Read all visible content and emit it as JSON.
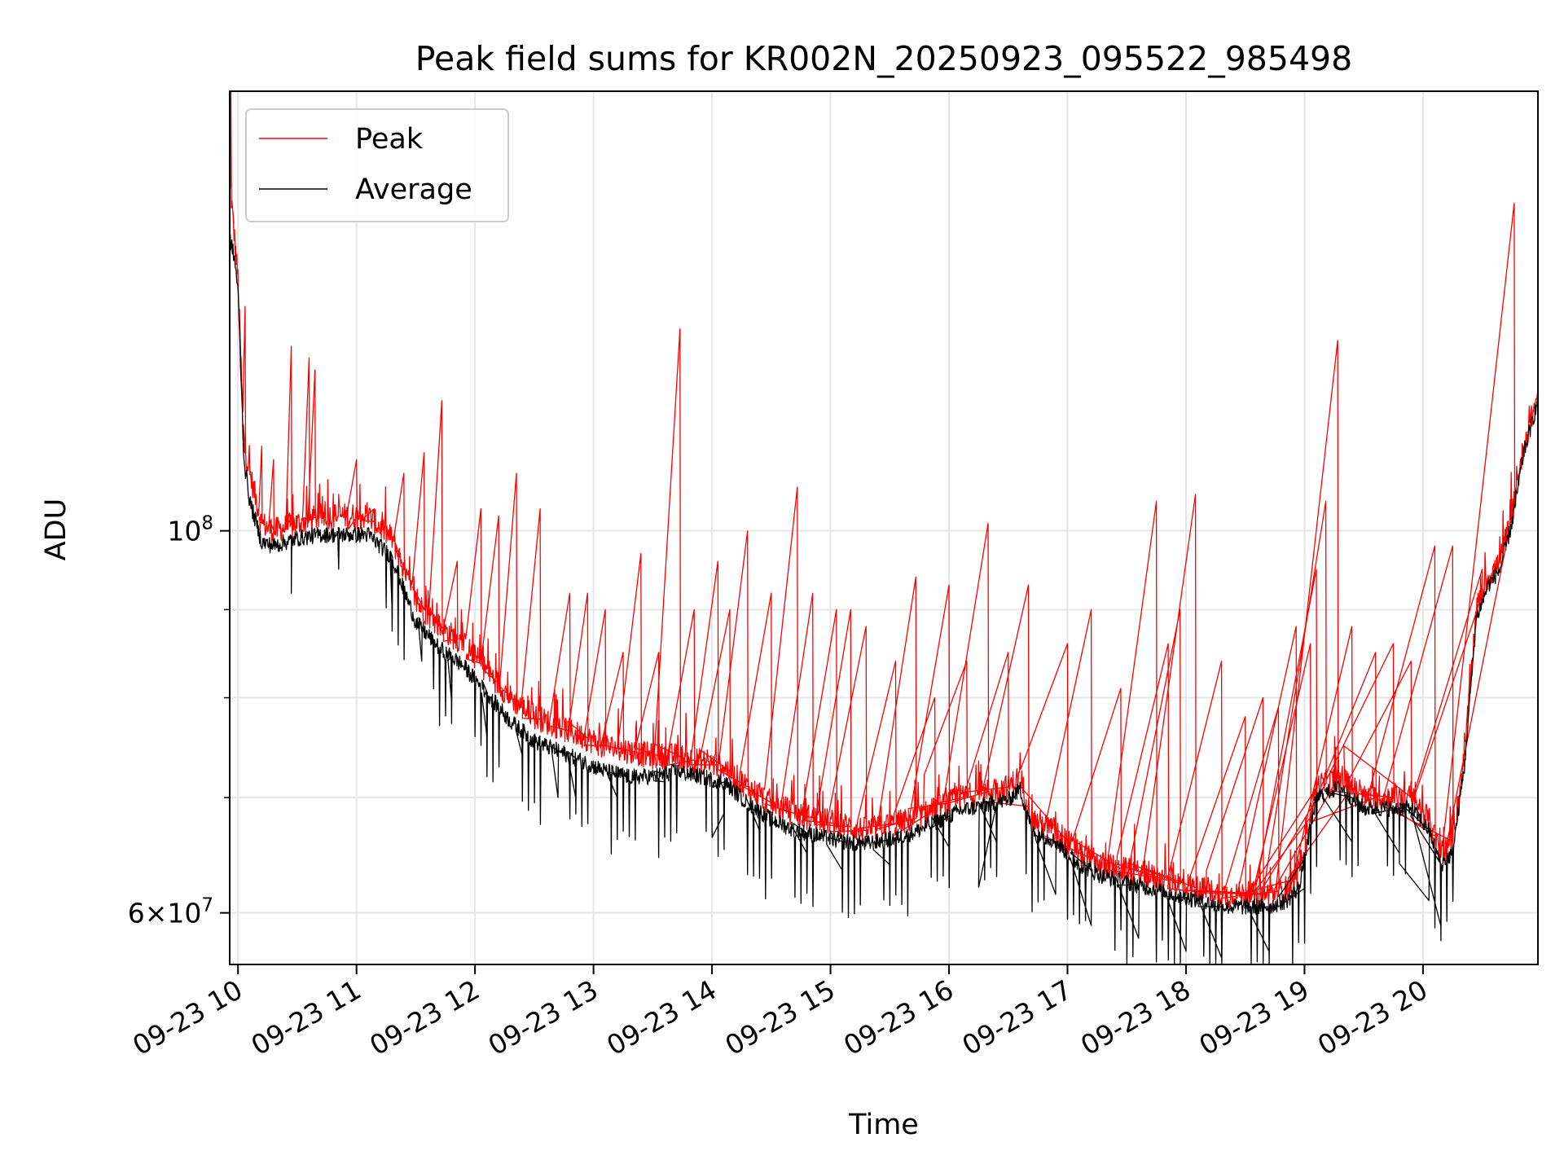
{
  "chart_data": {
    "type": "line",
    "title": "Peak field sums for KR002N_20250923_095522_985498",
    "xlabel": "Time",
    "ylabel": "ADU",
    "yscale": "log",
    "ylim": [
      56000000,
      180000000
    ],
    "xlim_hours": [
      9.93,
      20.97
    ],
    "x_ticks": [
      {
        "hour": 10,
        "label": "09-23 10"
      },
      {
        "hour": 11,
        "label": "09-23 11"
      },
      {
        "hour": 12,
        "label": "09-23 12"
      },
      {
        "hour": 13,
        "label": "09-23 13"
      },
      {
        "hour": 14,
        "label": "09-23 14"
      },
      {
        "hour": 15,
        "label": "09-23 15"
      },
      {
        "hour": 16,
        "label": "09-23 16"
      },
      {
        "hour": 17,
        "label": "09-23 17"
      },
      {
        "hour": 18,
        "label": "09-23 18"
      },
      {
        "hour": 19,
        "label": "09-23 19"
      },
      {
        "hour": 20,
        "label": "09-23 20"
      }
    ],
    "y_major_ticks": [
      {
        "value": 100000000,
        "label": "10^8"
      },
      {
        "value": 60000000,
        "label": "6×10^7"
      }
    ],
    "y_minor_gridlines": [
      70000000,
      80000000,
      90000000
    ],
    "grid": true,
    "legend_position": "upper-left",
    "series": [
      {
        "name": "Peak",
        "color": "#ff0000",
        "x_hours": [
          9.93,
          9.97,
          10.0,
          10.05,
          10.1,
          10.2,
          10.3,
          10.5,
          10.7,
          10.9,
          11.1,
          11.3,
          11.5,
          11.7,
          11.9,
          12.1,
          12.3,
          12.5,
          12.7,
          12.9,
          13.1,
          13.3,
          13.5,
          13.7,
          13.9,
          14.1,
          14.3,
          14.5,
          14.7,
          14.9,
          15.1,
          15.3,
          15.5,
          15.7,
          15.9,
          16.1,
          16.3,
          16.5,
          16.6,
          16.7,
          16.9,
          17.1,
          17.3,
          17.5,
          17.7,
          17.9,
          18.1,
          18.3,
          18.5,
          18.7,
          18.85,
          18.95,
          19.1,
          19.3,
          19.5,
          19.7,
          19.9,
          20.05,
          20.15,
          20.25,
          20.35,
          20.45,
          20.55,
          20.65,
          20.75,
          20.85,
          20.97
        ],
        "y": [
          160000000,
          148000000,
          140000000,
          112000000,
          108000000,
          101000000,
          100000000,
          101000000,
          102000000,
          102000000,
          102000000,
          99000000,
          91000000,
          88000000,
          86000000,
          83000000,
          80000000,
          78000000,
          77000000,
          76000000,
          75000000,
          74500000,
          74000000,
          74000000,
          73500000,
          73000000,
          71000000,
          69500000,
          68500000,
          68000000,
          67500000,
          67000000,
          67500000,
          68000000,
          69000000,
          70000000,
          70500000,
          71000000,
          72000000,
          68000000,
          67000000,
          65000000,
          64000000,
          63500000,
          63000000,
          62500000,
          62000000,
          61500000,
          61500000,
          61500000,
          62000000,
          63000000,
          71000000,
          72000000,
          70000000,
          70000000,
          70000000,
          68000000,
          65000000,
          66000000,
          74000000,
          90000000,
          94000000,
          96000000,
          102000000,
          112000000,
          120000000
        ],
        "spikes": [
          [
            9.94,
            185000000
          ],
          [
            9.96,
            152000000
          ],
          [
            10.06,
            135000000
          ],
          [
            10.2,
            112000000
          ],
          [
            10.3,
            110000000
          ],
          [
            10.45,
            128000000
          ],
          [
            10.6,
            126000000
          ],
          [
            10.65,
            124000000
          ],
          [
            11.0,
            110000000
          ],
          [
            11.15,
            103000000
          ],
          [
            11.4,
            108000000
          ],
          [
            11.57,
            111000000
          ],
          [
            11.72,
            119000000
          ],
          [
            11.85,
            96000000
          ],
          [
            12.05,
            103000000
          ],
          [
            12.2,
            102000000
          ],
          [
            12.35,
            108000000
          ],
          [
            12.55,
            103000000
          ],
          [
            12.8,
            92000000
          ],
          [
            12.95,
            92000000
          ],
          [
            13.1,
            90000000
          ],
          [
            13.25,
            85000000
          ],
          [
            13.4,
            97000000
          ],
          [
            13.55,
            85000000
          ],
          [
            13.73,
            131000000
          ],
          [
            13.85,
            90000000
          ],
          [
            14.05,
            96000000
          ],
          [
            14.15,
            90000000
          ],
          [
            14.3,
            100000000
          ],
          [
            14.5,
            92000000
          ],
          [
            14.72,
            106000000
          ],
          [
            14.85,
            92000000
          ],
          [
            15.05,
            90000000
          ],
          [
            15.17,
            90000000
          ],
          [
            15.3,
            88000000
          ],
          [
            15.55,
            84000000
          ],
          [
            15.72,
            94000000
          ],
          [
            15.88,
            80000000
          ],
          [
            16.0,
            93000000
          ],
          [
            16.15,
            84000000
          ],
          [
            16.33,
            101000000
          ],
          [
            16.5,
            85000000
          ],
          [
            16.67,
            93000000
          ],
          [
            17.0,
            86000000
          ],
          [
            17.2,
            90000000
          ],
          [
            17.45,
            81000000
          ],
          [
            17.75,
            104000000
          ],
          [
            17.85,
            86000000
          ],
          [
            17.95,
            90000000
          ],
          [
            18.08,
            105000000
          ],
          [
            18.3,
            84000000
          ],
          [
            18.5,
            78000000
          ],
          [
            18.65,
            80000000
          ],
          [
            18.78,
            79000000
          ],
          [
            18.93,
            88000000
          ],
          [
            19.05,
            86000000
          ],
          [
            19.1,
            95000000
          ],
          [
            19.18,
            104000000
          ],
          [
            19.28,
            129000000
          ],
          [
            19.4,
            88000000
          ],
          [
            19.6,
            85000000
          ],
          [
            19.75,
            86000000
          ],
          [
            19.9,
            84000000
          ],
          [
            20.1,
            98000000
          ],
          [
            20.25,
            98000000
          ],
          [
            20.5,
            95000000
          ],
          [
            20.77,
            155000000
          ]
        ]
      },
      {
        "name": "Average",
        "color": "#000000",
        "x_hours": [
          9.93,
          9.97,
          10.0,
          10.05,
          10.1,
          10.2,
          10.3,
          10.5,
          10.7,
          10.9,
          11.1,
          11.3,
          11.5,
          11.7,
          11.9,
          12.1,
          12.3,
          12.5,
          12.7,
          12.9,
          13.1,
          13.3,
          13.5,
          13.7,
          13.9,
          14.1,
          14.3,
          14.5,
          14.7,
          14.9,
          15.1,
          15.3,
          15.5,
          15.7,
          15.9,
          16.1,
          16.3,
          16.5,
          16.6,
          16.7,
          16.9,
          17.1,
          17.3,
          17.5,
          17.7,
          17.9,
          18.1,
          18.3,
          18.5,
          18.7,
          18.85,
          18.95,
          19.1,
          19.3,
          19.5,
          19.7,
          19.9,
          20.05,
          20.15,
          20.25,
          20.35,
          20.45,
          20.55,
          20.65,
          20.75,
          20.85,
          20.97
        ],
        "y": [
          148000000,
          144000000,
          138000000,
          110000000,
          104000000,
          98500000,
          98000000,
          99000000,
          99500000,
          99500000,
          99500000,
          96500000,
          88500000,
          85500000,
          83500000,
          80500000,
          77500000,
          75500000,
          74500000,
          73500000,
          72500000,
          72000000,
          72000000,
          72500000,
          72000000,
          71500000,
          69500000,
          68000000,
          67000000,
          66500000,
          66000000,
          65800000,
          66200000,
          66800000,
          67800000,
          68800000,
          69300000,
          69800000,
          70800000,
          67000000,
          66000000,
          64000000,
          63000000,
          62500000,
          62000000,
          61500000,
          61000000,
          60500000,
          60500000,
          60500000,
          61000000,
          62000000,
          70000000,
          71000000,
          69000000,
          69000000,
          69000000,
          67000000,
          64000000,
          65000000,
          73000000,
          89000000,
          93000000,
          95000000,
          101000000,
          111000000,
          119000000
        ],
        "dips": [
          [
            10.45,
            92000000
          ],
          [
            10.85,
            95000000
          ],
          [
            11.3,
            90000000
          ],
          [
            11.55,
            84000000
          ],
          [
            11.8,
            80000000
          ],
          [
            12.1,
            76000000
          ],
          [
            12.4,
            74000000
          ],
          [
            12.7,
            70000000
          ],
          [
            12.85,
            70000000
          ],
          [
            13.2,
            70000000
          ],
          [
            13.6,
            71500000
          ],
          [
            14.1,
            68500000
          ],
          [
            14.4,
            67000000
          ],
          [
            14.8,
            65000000
          ],
          [
            15.1,
            63500000
          ],
          [
            15.5,
            64000000
          ],
          [
            16.0,
            65500000
          ],
          [
            16.4,
            66000000
          ],
          [
            16.9,
            61500000
          ],
          [
            17.2,
            59000000
          ],
          [
            17.6,
            58000000
          ],
          [
            18.0,
            57000000
          ],
          [
            18.3,
            56500000
          ],
          [
            18.7,
            57000000
          ],
          [
            19.0,
            62000000
          ],
          [
            19.4,
            66000000
          ],
          [
            19.8,
            65000000
          ],
          [
            20.05,
            61000000
          ],
          [
            20.15,
            59000000
          ]
        ]
      }
    ]
  }
}
